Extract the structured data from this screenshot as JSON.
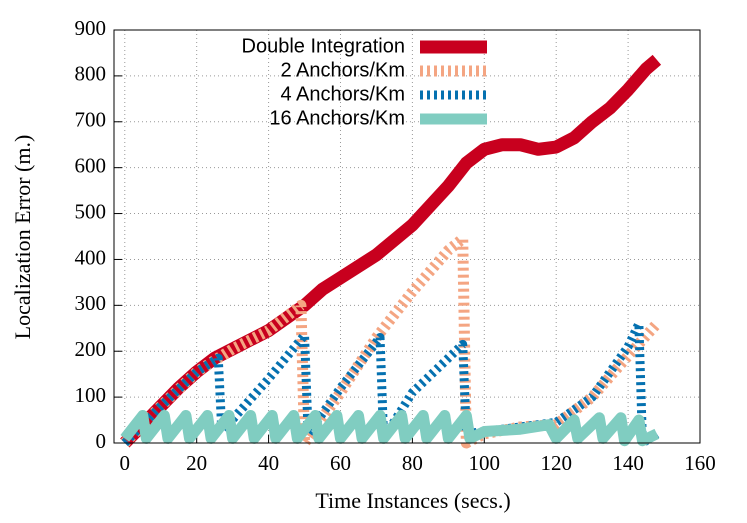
{
  "chart_data": {
    "type": "line",
    "x_label": "Time Instances (secs.)",
    "y_label": "Localization Error (m.)",
    "xlim": [
      -3,
      160
    ],
    "ylim": [
      0,
      900
    ],
    "xticks": [
      0,
      20,
      40,
      60,
      80,
      100,
      120,
      140,
      160
    ],
    "yticks": [
      0,
      100,
      200,
      300,
      400,
      500,
      600,
      700,
      800,
      900
    ],
    "grid": true,
    "legend": "top-left",
    "series": [
      {
        "name": "Double Integration",
        "color": "#c8001e",
        "style": "solid",
        "x": [
          0,
          5,
          10,
          15,
          20,
          25,
          30,
          40,
          50,
          55,
          60,
          70,
          80,
          90,
          95,
          100,
          105,
          110,
          115,
          120,
          125,
          130,
          135,
          140,
          145,
          148
        ],
        "values": [
          0,
          40,
          80,
          120,
          155,
          185,
          205,
          245,
          300,
          335,
          360,
          410,
          475,
          560,
          610,
          640,
          650,
          650,
          640,
          645,
          665,
          700,
          730,
          770,
          815,
          835
        ]
      },
      {
        "name": "2 Anchors/Km",
        "color": "#f4a582",
        "style": "dashed",
        "x": [
          0,
          10,
          20,
          30,
          40,
          49,
          50,
          60,
          70,
          80,
          90,
          94,
          95,
          100,
          110,
          120,
          130,
          140,
          148
        ],
        "values": [
          0,
          80,
          155,
          205,
          245,
          300,
          0,
          110,
          230,
          330,
          420,
          445,
          0,
          20,
          35,
          40,
          100,
          190,
          260
        ]
      },
      {
        "name": "4 Anchors/Km",
        "color": "#0571b0",
        "style": "dashed",
        "x": [
          0,
          10,
          20,
          26,
          27,
          40,
          50,
          51,
          60,
          71,
          72,
          80,
          94,
          95,
          100,
          110,
          120,
          130,
          140,
          143,
          144,
          148
        ],
        "values": [
          0,
          80,
          155,
          185,
          25,
          140,
          235,
          20,
          120,
          230,
          10,
          110,
          215,
          20,
          25,
          35,
          45,
          100,
          210,
          260,
          0,
          20
        ]
      },
      {
        "name": "16 Anchors/Km",
        "color": "#80cdc1",
        "style": "solid",
        "x": [
          0,
          5,
          6,
          11,
          12,
          17,
          18,
          23,
          24,
          29,
          30,
          35,
          36,
          41,
          42,
          47,
          48,
          53,
          54,
          59,
          60,
          65,
          66,
          71,
          72,
          77,
          78,
          83,
          84,
          89,
          90,
          95,
          96,
          100,
          110,
          118,
          120,
          125,
          126,
          132,
          133,
          138,
          139,
          143,
          144,
          148
        ],
        "values": [
          10,
          60,
          10,
          60,
          10,
          60,
          10,
          60,
          10,
          60,
          10,
          60,
          10,
          60,
          10,
          60,
          10,
          60,
          10,
          60,
          10,
          60,
          10,
          60,
          10,
          60,
          10,
          60,
          10,
          60,
          10,
          60,
          10,
          25,
          30,
          40,
          10,
          50,
          10,
          55,
          10,
          55,
          5,
          50,
          5,
          20
        ]
      }
    ]
  }
}
